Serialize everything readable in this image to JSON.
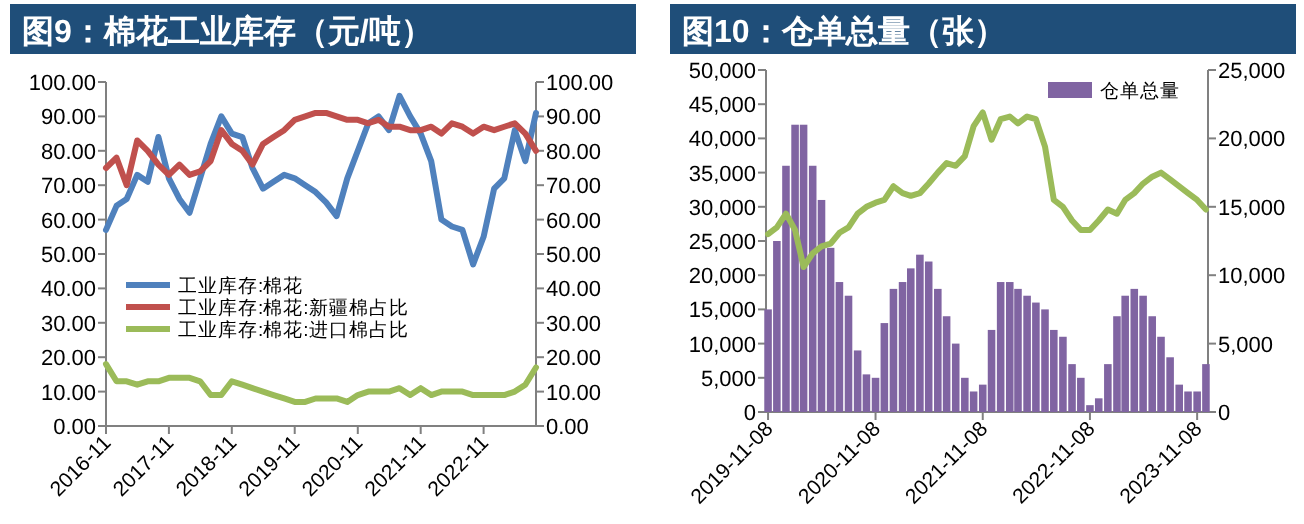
{
  "chart_data": [
    {
      "type": "line",
      "title": "图9：棉花工业库存（元/吨）",
      "legend": "center left",
      "line_style": "solid",
      "x": [
        "2016-11",
        "2017-01",
        "2017-03",
        "2017-05",
        "2017-07",
        "2017-09",
        "2017-11",
        "2018-01",
        "2018-03",
        "2018-05",
        "2018-07",
        "2018-09",
        "2018-11",
        "2019-01",
        "2019-03",
        "2019-05",
        "2019-07",
        "2019-09",
        "2019-11",
        "2020-01",
        "2020-03",
        "2020-05",
        "2020-07",
        "2020-09",
        "2020-11",
        "2021-01",
        "2021-03",
        "2021-05",
        "2021-07",
        "2021-09",
        "2021-11",
        "2022-01",
        "2022-03",
        "2022-05",
        "2022-07",
        "2022-09",
        "2022-11",
        "2023-01",
        "2023-03",
        "2023-05",
        "2023-07",
        "2023-09"
      ],
      "xlim": [
        "2016-11",
        "2023-09"
      ],
      "xticks": [
        "2016-11",
        "2017-11",
        "2018-11",
        "2019-11",
        "2020-11",
        "2021-11",
        "2022-11"
      ],
      "ylim": [
        0,
        100
      ],
      "yticks": [
        {
          "value": 0,
          "label": "0.00"
        },
        {
          "value": 10,
          "label": "10.00"
        },
        {
          "value": 20,
          "label": "20.00"
        },
        {
          "value": 30,
          "label": "30.00"
        },
        {
          "value": 40,
          "label": "40.00"
        },
        {
          "value": 50,
          "label": "50.00"
        },
        {
          "value": 60,
          "label": "60.00"
        },
        {
          "value": 70,
          "label": "70.00"
        },
        {
          "value": 80,
          "label": "80.00"
        },
        {
          "value": 90,
          "label": "90.00"
        },
        {
          "value": 100,
          "label": "100.00"
        }
      ],
      "y2lim": [
        0,
        100
      ],
      "y2ticks": [
        {
          "value": 0,
          "label": "0.00"
        },
        {
          "value": 10,
          "label": "10.00"
        },
        {
          "value": 20,
          "label": "20.00"
        },
        {
          "value": 30,
          "label": "30.00"
        },
        {
          "value": 40,
          "label": "40.00"
        },
        {
          "value": 50,
          "label": "50.00"
        },
        {
          "value": 60,
          "label": "60.00"
        },
        {
          "value": 70,
          "label": "70.00"
        },
        {
          "value": 80,
          "label": "80.00"
        },
        {
          "value": 90,
          "label": "90.00"
        },
        {
          "value": 100,
          "label": "100.00"
        }
      ],
      "series": [
        {
          "name": "工业库存:棉花",
          "color": "#4f81bd",
          "values": [
            57,
            64,
            66,
            73,
            71,
            84,
            72,
            66,
            62,
            72,
            82,
            90,
            85,
            84,
            75,
            69,
            71,
            73,
            72,
            70,
            68,
            65,
            61,
            72,
            80,
            88,
            90,
            86,
            96,
            90,
            85,
            77,
            60,
            58,
            57,
            47,
            55,
            69,
            72,
            86,
            77,
            91
          ]
        },
        {
          "name": "工业库存:棉花:新疆棉占比",
          "color": "#c0504d",
          "values": [
            75,
            78,
            70,
            83,
            80,
            76,
            73,
            76,
            73,
            74,
            77,
            86,
            82,
            80,
            76,
            82,
            84,
            86,
            89,
            90,
            91,
            91,
            90,
            89,
            89,
            88,
            89,
            87,
            87,
            86,
            86,
            87,
            85,
            88,
            87,
            85,
            87,
            86,
            87,
            88,
            85,
            80
          ]
        },
        {
          "name": "工业库存:棉花:进口棉占比",
          "color": "#9bbb59",
          "values": [
            18,
            13,
            13,
            12,
            13,
            13,
            14,
            14,
            14,
            13,
            9,
            9,
            13,
            12,
            11,
            10,
            9,
            8,
            7,
            7,
            8,
            8,
            8,
            7,
            9,
            10,
            10,
            10,
            11,
            9,
            11,
            9,
            10,
            10,
            10,
            9,
            9,
            9,
            9,
            10,
            12,
            17
          ]
        }
      ]
    },
    {
      "type": "bar",
      "title": "图10：仓单总量（张）",
      "legend": "top right",
      "line_style": "solid",
      "x": [
        "2019-11-08",
        "2019-12-08",
        "2020-01-08",
        "2020-02-08",
        "2020-03-08",
        "2020-04-08",
        "2020-05-08",
        "2020-06-08",
        "2020-07-08",
        "2020-08-08",
        "2020-09-08",
        "2020-10-08",
        "2020-11-08",
        "2020-12-08",
        "2021-01-08",
        "2021-02-08",
        "2021-03-08",
        "2021-04-08",
        "2021-05-08",
        "2021-06-08",
        "2021-07-08",
        "2021-08-08",
        "2021-09-08",
        "2021-10-08",
        "2021-11-08",
        "2021-12-08",
        "2022-01-08",
        "2022-02-08",
        "2022-03-08",
        "2022-04-08",
        "2022-05-08",
        "2022-06-08",
        "2022-07-08",
        "2022-08-08",
        "2022-09-08",
        "2022-10-08",
        "2022-11-08",
        "2022-12-08",
        "2023-01-08",
        "2023-02-08",
        "2023-03-08",
        "2023-04-08",
        "2023-05-08",
        "2023-06-08",
        "2023-07-08",
        "2023-08-08",
        "2023-09-08",
        "2023-10-08",
        "2023-11-08",
        "2023-12-08"
      ],
      "xlim": [
        "2019-11-01",
        "2023-12-15"
      ],
      "xticks": [
        "2019-11-08",
        "2020-11-08",
        "2021-11-08",
        "2022-11-08",
        "2023-11-08"
      ],
      "ylim": [
        0,
        50000
      ],
      "yticks": [
        {
          "value": 0,
          "label": "0"
        },
        {
          "value": 5000,
          "label": "5,000"
        },
        {
          "value": 10000,
          "label": "10,000"
        },
        {
          "value": 15000,
          "label": "15,000"
        },
        {
          "value": 20000,
          "label": "20,000"
        },
        {
          "value": 25000,
          "label": "25,000"
        },
        {
          "value": 30000,
          "label": "30,000"
        },
        {
          "value": 35000,
          "label": "35,000"
        },
        {
          "value": 40000,
          "label": "40,000"
        },
        {
          "value": 45000,
          "label": "45,000"
        },
        {
          "value": 50000,
          "label": "50,000"
        }
      ],
      "y2lim": [
        0,
        25000
      ],
      "y2ticks": [
        {
          "value": 0,
          "label": "0"
        },
        {
          "value": 5000,
          "label": "5,000"
        },
        {
          "value": 10000,
          "label": "10,000"
        },
        {
          "value": 15000,
          "label": "15,000"
        },
        {
          "value": 20000,
          "label": "20,000"
        },
        {
          "value": 25000,
          "label": "25,000"
        }
      ],
      "series": [
        {
          "name": "仓单总量",
          "color": "#8064a2",
          "values": [
            15000,
            25000,
            36000,
            42000,
            42000,
            36000,
            31000,
            24000,
            19000,
            17000,
            9000,
            5500,
            5000,
            13000,
            18000,
            19000,
            21000,
            23000,
            22000,
            18000,
            14000,
            10000,
            5000,
            3000,
            4000,
            12000,
            19000,
            19000,
            18000,
            17000,
            16000,
            15000,
            12000,
            11000,
            7000,
            5000,
            1000,
            2000,
            7000,
            14000,
            17000,
            18000,
            17000,
            14000,
            11000,
            8000,
            4000,
            3000,
            3000,
            7000
          ]
        },
        {
          "type": "line",
          "axis": "y2",
          "color": "#9bbb59",
          "values": [
            13000,
            13500,
            14500,
            13300,
            10600,
            11600,
            12100,
            12300,
            13100,
            13500,
            14500,
            15000,
            15300,
            15500,
            16500,
            16000,
            15800,
            16000,
            16700,
            17500,
            18200,
            18000,
            18700,
            20900,
            21900,
            19900,
            21400,
            21600,
            21100,
            21600,
            21400,
            19400,
            15500,
            15000,
            14000,
            13300,
            13300,
            14000,
            14800,
            14500,
            15500,
            16000,
            16700,
            17200,
            17500,
            17000,
            16500,
            16000,
            15500,
            14800
          ]
        }
      ]
    }
  ]
}
